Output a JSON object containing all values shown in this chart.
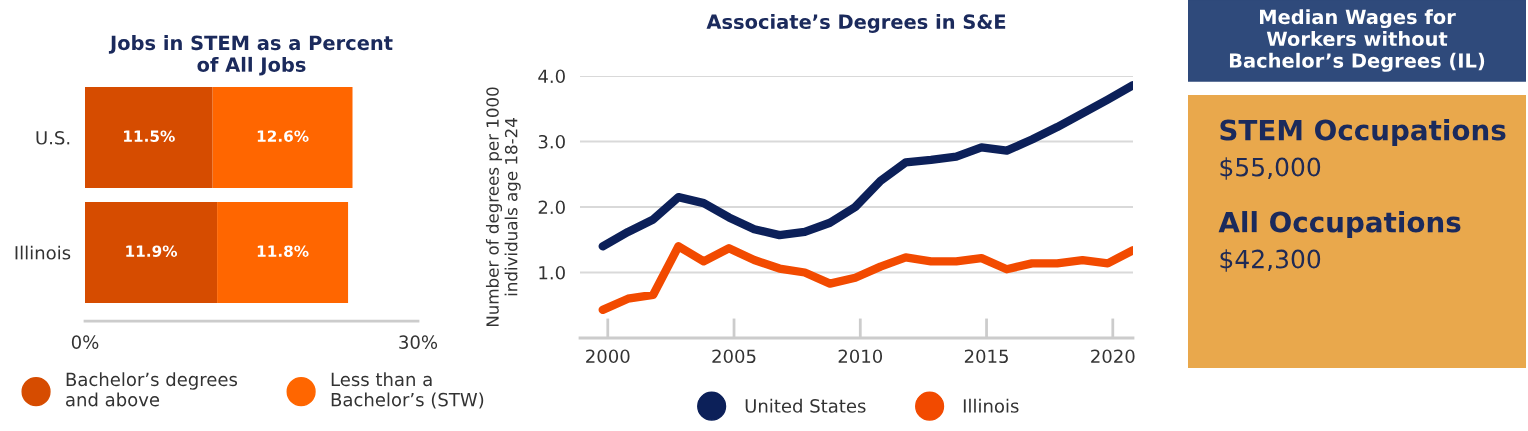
{
  "chart_data": [
    {
      "type": "bar",
      "title": "Jobs in STEM as a Percent\nof All Jobs",
      "orientation": "horizontal",
      "stacked": true,
      "categories": [
        "U.S.",
        "Illinois"
      ],
      "series": [
        {
          "name": "Bachelor’s degrees\nand above",
          "color": "#d64c00",
          "values": [
            11.5,
            11.9
          ],
          "value_labels": [
            "11.5%",
            "11.9%"
          ]
        },
        {
          "name": "Less than a\nBachelor’s (STW)",
          "color": "#ff6600",
          "values": [
            12.6,
            11.8
          ],
          "value_labels": [
            "12.6%",
            "11.8%"
          ]
        }
      ],
      "xlim": [
        0,
        30
      ],
      "xticks": [
        {
          "value": 0,
          "label": "0%"
        },
        {
          "value": 30,
          "label": "30%"
        }
      ],
      "grid": false,
      "legend": "bottom"
    },
    {
      "type": "line",
      "title": "Associate’s Degrees in S&E",
      "ylabel": "Number of degrees per 1000\nindividuals age 18-24",
      "x": [
        1999.8,
        2000.8,
        2001.8,
        2002.8,
        2003.8,
        2004.8,
        2005.8,
        2006.8,
        2007.8,
        2008.8,
        2009.8,
        2010.8,
        2011.8,
        2012.8,
        2013.8,
        2014.8,
        2015.8,
        2016.8,
        2017.8,
        2018.8,
        2019.8,
        2020.8
      ],
      "series": [
        {
          "name": "United States",
          "color": "#0c2059",
          "values": [
            1.4,
            1.62,
            1.81,
            2.15,
            2.06,
            1.84,
            1.66,
            1.57,
            1.62,
            1.76,
            2.0,
            2.4,
            2.68,
            2.72,
            2.77,
            2.91,
            2.86,
            3.03,
            3.22,
            3.43,
            3.64,
            3.86
          ]
        },
        {
          "name": "Illinois",
          "color": "#f24a00",
          "values": [
            0.43,
            0.6,
            0.66,
            1.4,
            1.17,
            1.37,
            1.19,
            1.06,
            1.0,
            0.83,
            0.92,
            1.09,
            1.23,
            1.17,
            1.17,
            1.22,
            1.05,
            1.14,
            1.14,
            1.19,
            1.14,
            1.34
          ]
        }
      ],
      "xlim": [
        1998.9,
        2020.8
      ],
      "xticks": [
        2000,
        2005,
        2010,
        2015,
        2020
      ],
      "ylim": [
        0,
        4.0
      ],
      "yticks": [
        {
          "value": 1.0,
          "label": "1.0"
        },
        {
          "value": 2.0,
          "label": "2.0"
        },
        {
          "value": 3.0,
          "label": "3.0"
        },
        {
          "value": 4.0,
          "label": "4.0"
        }
      ],
      "grid": "y",
      "legend": "bottom",
      "marker": "none",
      "line_style": "solid"
    },
    {
      "type": "other",
      "title": "Median Wages for\nWorkers without\nBachelor’s Degrees (IL)",
      "annotations": [
        "STEM Occupations",
        "$55,000",
        "All Occupations",
        "$42,300"
      ]
    }
  ]
}
